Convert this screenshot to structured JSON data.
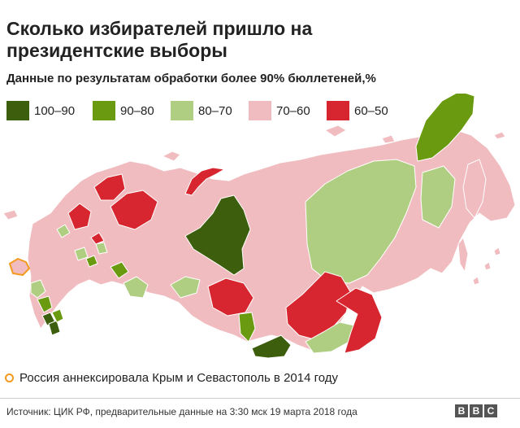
{
  "title": "Сколько избирателей пришло на президентские выборы",
  "subtitle": "Данные по результатам обработки более 90% бюллетеней,%",
  "legend": [
    {
      "label": "100–90",
      "color": "#3d5e0c"
    },
    {
      "label": "90–80",
      "color": "#6a9a0f"
    },
    {
      "label": "80–70",
      "color": "#b0ce82"
    },
    {
      "label": "70–60",
      "color": "#f1bcbf"
    },
    {
      "label": "60–50",
      "color": "#d7262f"
    }
  ],
  "crimea_color": "#f39a1f",
  "note": "Россия аннексировала Крым и Севастополь в 2014 году",
  "source": "Источник: ЦИК РФ, предварительные данные на 3:30 мск 19 марта 2018 года",
  "brand": [
    "B",
    "B",
    "C"
  ]
}
